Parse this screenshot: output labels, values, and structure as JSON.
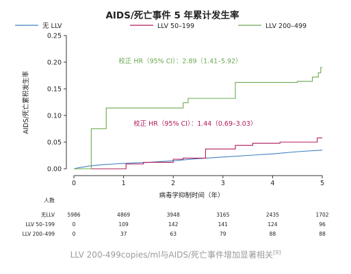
{
  "chart_data": {
    "type": "line",
    "title": "AIDS/死亡事件 5 年累计发生率",
    "xlabel": "病毒学抑制时间（年）",
    "ylabel": "AIDS/死亡累积发生率",
    "xlim": [
      0,
      5
    ],
    "ylim": [
      0,
      0.25
    ],
    "x_ticks": [
      "0",
      "1",
      "2",
      "3",
      "4",
      "5"
    ],
    "y_ticks": [
      "0.00",
      "0.05",
      "0.10",
      "0.15",
      "0.20",
      "0.25"
    ],
    "legend_position": "top",
    "series": [
      {
        "name": "无 LLV",
        "color": "#3f7fc0",
        "points": [
          [
            0,
            0
          ],
          [
            0.1,
            0.002
          ],
          [
            0.3,
            0.005
          ],
          [
            0.6,
            0.008
          ],
          [
            0.8,
            0.009
          ],
          [
            1.0,
            0.01
          ],
          [
            1.5,
            0.012
          ],
          [
            2.0,
            0.015
          ],
          [
            2.5,
            0.019
          ],
          [
            3.0,
            0.022
          ],
          [
            3.5,
            0.025
          ],
          [
            4.0,
            0.028
          ],
          [
            4.5,
            0.032
          ],
          [
            5.0,
            0.035
          ]
        ]
      },
      {
        "name": "LLV 50–199",
        "color": "#b0195a",
        "points": [
          [
            0,
            0
          ],
          [
            1.05,
            0
          ],
          [
            1.05,
            0.009
          ],
          [
            1.4,
            0.009
          ],
          [
            1.4,
            0.012
          ],
          [
            2.0,
            0.012
          ],
          [
            2.0,
            0.018
          ],
          [
            2.2,
            0.018
          ],
          [
            2.2,
            0.02
          ],
          [
            2.65,
            0.02
          ],
          [
            2.65,
            0.037
          ],
          [
            3.25,
            0.037
          ],
          [
            3.25,
            0.044
          ],
          [
            3.6,
            0.044
          ],
          [
            3.6,
            0.048
          ],
          [
            4.15,
            0.048
          ],
          [
            4.15,
            0.05
          ],
          [
            4.9,
            0.05
          ],
          [
            4.9,
            0.058
          ],
          [
            5.0,
            0.058
          ]
        ]
      },
      {
        "name": "LLV 200–499",
        "color": "#6aa84f",
        "points": [
          [
            0,
            0
          ],
          [
            0.35,
            0
          ],
          [
            0.35,
            0.075
          ],
          [
            0.65,
            0.075
          ],
          [
            0.65,
            0.114
          ],
          [
            2.2,
            0.114
          ],
          [
            2.2,
            0.124
          ],
          [
            2.3,
            0.124
          ],
          [
            2.3,
            0.132
          ],
          [
            3.25,
            0.132
          ],
          [
            3.25,
            0.162
          ],
          [
            4.5,
            0.162
          ],
          [
            4.5,
            0.164
          ],
          [
            4.8,
            0.164
          ],
          [
            4.8,
            0.172
          ],
          [
            4.92,
            0.172
          ],
          [
            4.92,
            0.18
          ],
          [
            4.97,
            0.18
          ],
          [
            4.97,
            0.19
          ],
          [
            5.0,
            0.19
          ]
        ]
      }
    ],
    "annotations": [
      {
        "text": "校正 HR（95% CI）：2.89（1.41–5.92）",
        "color": "#6aa84f",
        "x": 0.9,
        "y": 0.198
      },
      {
        "text": "校正 HR（95% CI）：1.44（0.69–3.03）",
        "color": "#b0195a",
        "x": 1.2,
        "y": 0.081
      }
    ],
    "risk_table": {
      "title": "人数",
      "times": [
        0,
        1,
        2,
        3,
        4,
        5
      ],
      "rows": [
        {
          "label": "无LLV",
          "values": [
            "5986",
            "4869",
            "3948",
            "3165",
            "2435",
            "1702"
          ]
        },
        {
          "label": "LLV 50–199",
          "values": [
            "0",
            "109",
            "142",
            "141",
            "124",
            "96"
          ]
        },
        {
          "label": "LLV 200–499",
          "values": [
            "0",
            "37",
            "63",
            "79",
            "88",
            "88"
          ]
        }
      ]
    }
  },
  "caption": {
    "text": "LLV 200-499copies/ml与AIDS/死亡事件增加显著相关",
    "ref": "[9]"
  }
}
